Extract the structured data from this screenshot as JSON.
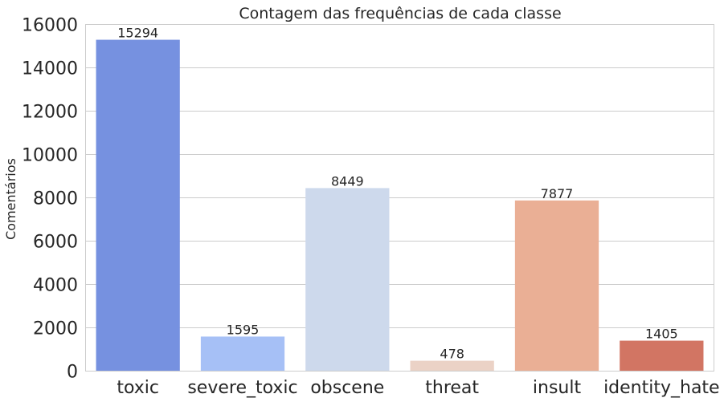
{
  "chart_data": {
    "type": "bar",
    "title": "Contagem das frequências de cada classe",
    "xlabel": "",
    "ylabel": "Comentários",
    "categories": [
      "toxic",
      "severe_toxic",
      "obscene",
      "threat",
      "insult",
      "identity_hate"
    ],
    "values": [
      15294,
      1595,
      8449,
      478,
      7877,
      1405
    ],
    "colors": [
      "#7691e0",
      "#a6c0f6",
      "#cdd9ec",
      "#ebd2c6",
      "#eaaf95",
      "#d27563"
    ],
    "yticks": [
      0,
      2000,
      4000,
      6000,
      8000,
      10000,
      12000,
      14000,
      16000
    ],
    "ylim": [
      0,
      16000
    ],
    "grid": true,
    "data_labels": true
  }
}
